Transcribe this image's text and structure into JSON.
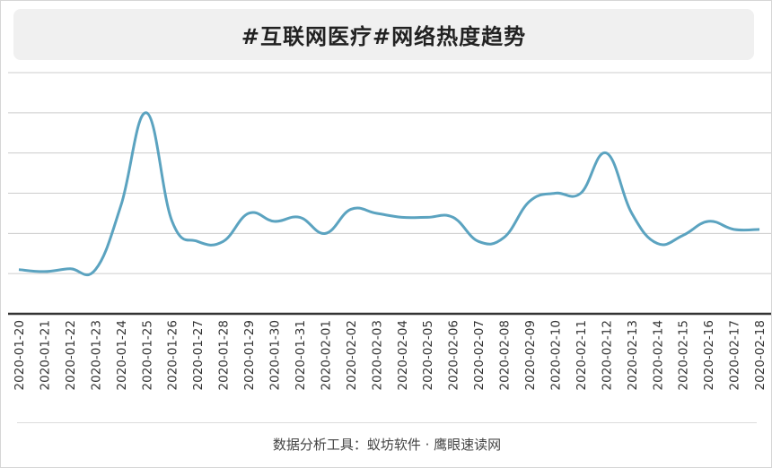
{
  "title": "#互联网医疗#网络热度趋势",
  "footer": "数据分析工具：蚁坊软件 · 鹰眼速读网",
  "colors": {
    "line": "#5ba3c0",
    "grid": "#cccccc",
    "axis": "#333333"
  },
  "chart_data": {
    "type": "line",
    "title": "#互联网医疗#网络热度趋势",
    "xlabel": "",
    "ylabel": "",
    "y_tick_labels_shown": false,
    "grid": true,
    "categories": [
      "2020-01-20",
      "2020-01-21",
      "2020-01-22",
      "2020-01-23",
      "2020-01-24",
      "2020-01-25",
      "2020-01-26",
      "2020-01-27",
      "2020-01-28",
      "2020-01-29",
      "2020-01-30",
      "2020-01-31",
      "2020-02-01",
      "2020-02-02",
      "2020-02-03",
      "2020-02-04",
      "2020-02-05",
      "2020-02-06",
      "2020-02-07",
      "2020-02-08",
      "2020-02-09",
      "2020-02-10",
      "2020-02-11",
      "2020-02-12",
      "2020-02-13",
      "2020-02-14",
      "2020-02-15",
      "2020-02-16",
      "2020-02-17",
      "2020-02-18"
    ],
    "values": [
      0.1,
      0.05,
      0.12,
      0.1,
      1.7,
      4.0,
      1.3,
      0.8,
      0.8,
      1.5,
      1.3,
      1.4,
      1.0,
      1.6,
      1.5,
      1.4,
      1.4,
      1.4,
      0.8,
      0.9,
      1.8,
      2.0,
      2.0,
      3.0,
      1.5,
      0.75,
      0.95,
      1.3,
      1.1,
      1.1
    ],
    "ylim": [
      -1,
      5
    ]
  }
}
